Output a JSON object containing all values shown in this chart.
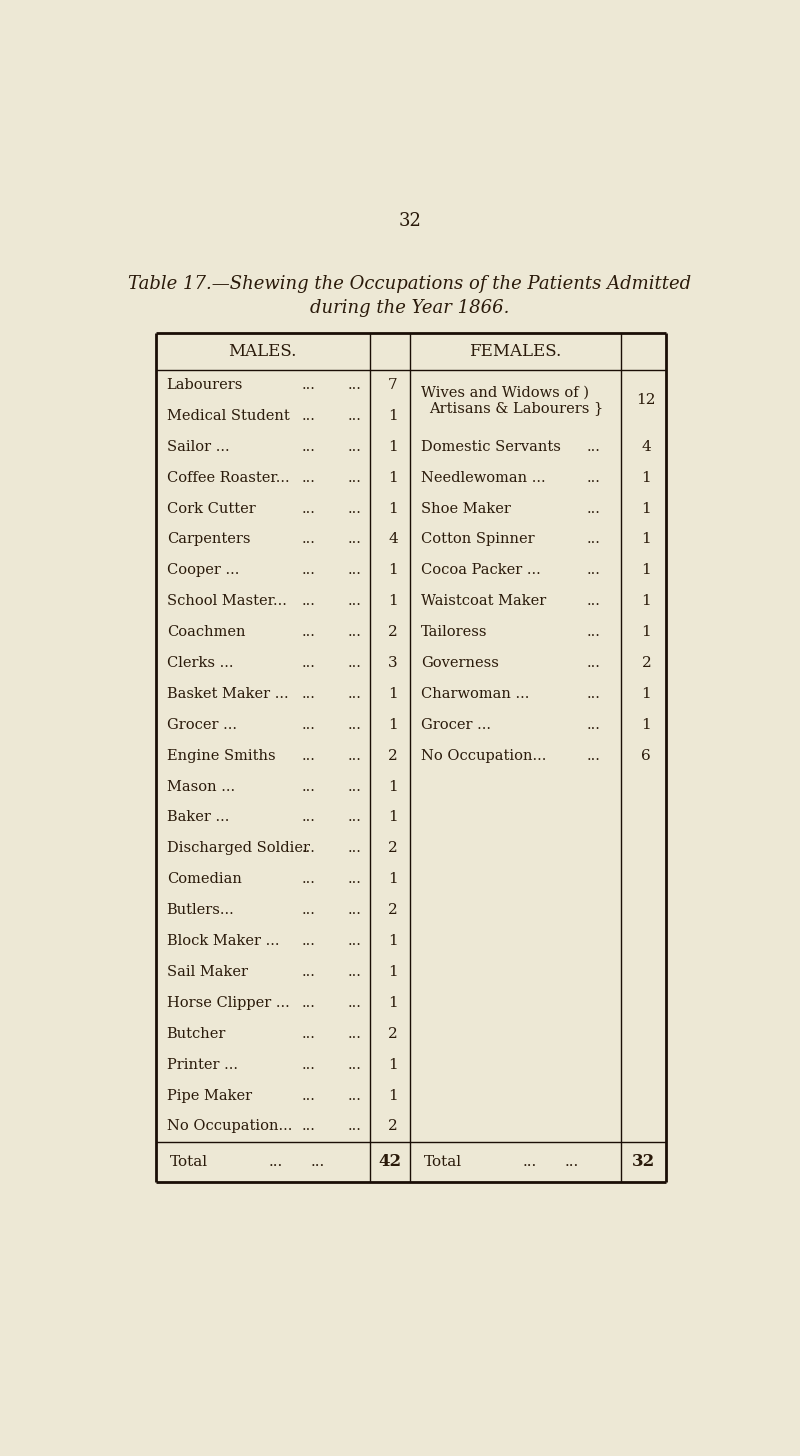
{
  "page_number": "32",
  "title_line1": "Table 17.—Shewing the Occupations of the Patients Admitted",
  "title_line2": "during the Year 1866.",
  "males_header": "MALES.",
  "females_header": "FEMALES.",
  "males_rows": [
    {
      "name": "Labourers",
      "dots1": "...",
      "dots2": "...",
      "val": "7"
    },
    {
      "name": "Medical Student",
      "dots1": "...",
      "dots2": "...",
      "val": "1"
    },
    {
      "name": "Sailor ...",
      "dots1": "...",
      "dots2": "...",
      "val": "1"
    },
    {
      "name": "Coffee Roaster...",
      "dots1": "...",
      "dots2": "...",
      "val": "1"
    },
    {
      "name": "Cork Cutter",
      "dots1": "...",
      "dots2": "...",
      "val": "1"
    },
    {
      "name": "Carpenters",
      "dots1": "...",
      "dots2": "...",
      "val": "4"
    },
    {
      "name": "Cooper ...",
      "dots1": "...",
      "dots2": "...",
      "val": "1"
    },
    {
      "name": "School Master...",
      "dots1": "...",
      "dots2": "...",
      "val": "1"
    },
    {
      "name": "Coachmen",
      "dots1": "...",
      "dots2": "...",
      "val": "2"
    },
    {
      "name": "Clerks ...",
      "dots1": "...",
      "dots2": "...",
      "val": "3"
    },
    {
      "name": "Basket Maker ...",
      "dots1": "...",
      "dots2": "...",
      "val": "1"
    },
    {
      "name": "Grocer ...",
      "dots1": "...",
      "dots2": "...",
      "val": "1"
    },
    {
      "name": "Engine Smiths",
      "dots1": "...",
      "dots2": "...",
      "val": "2"
    },
    {
      "name": "Mason ...",
      "dots1": "...",
      "dots2": "...",
      "val": "1"
    },
    {
      "name": "Baker ...",
      "dots1": "...",
      "dots2": "...",
      "val": "1"
    },
    {
      "name": "Discharged Soldier",
      "dots1": "...",
      "dots2": "...",
      "val": "2"
    },
    {
      "name": "Comedian",
      "dots1": "...",
      "dots2": "...",
      "val": "1"
    },
    {
      "name": "Butlers...",
      "dots1": "...",
      "dots2": "...",
      "val": "2"
    },
    {
      "name": "Block Maker ...",
      "dots1": "...",
      "dots2": "...",
      "val": "1"
    },
    {
      "name": "Sail Maker",
      "dots1": "...",
      "dots2": "...",
      "val": "1"
    },
    {
      "name": "Horse Clipper ...",
      "dots1": "...",
      "dots2": "...",
      "val": "1"
    },
    {
      "name": "Butcher",
      "dots1": "...",
      "dots2": "...",
      "val": "2"
    },
    {
      "name": "Printer ...",
      "dots1": "...",
      "dots2": "...",
      "val": "1"
    },
    {
      "name": "Pipe Maker",
      "dots1": "...",
      "dots2": "...",
      "val": "1"
    },
    {
      "name": "No Occupation...",
      "dots1": "...",
      "dots2": "...",
      "val": "2"
    }
  ],
  "males_total": "42",
  "females_rows": [
    {
      "line1": "Wives and Widows of )",
      "line2": "  Artisans & Labourers }",
      "dots": "",
      "val": "12",
      "span": 2
    },
    {
      "name": "Domestic Servants",
      "dots": "...",
      "val": "4",
      "row": 2
    },
    {
      "name": "Needlewoman ...",
      "dots": "...",
      "val": "1",
      "row": 3
    },
    {
      "name": "Shoe Maker",
      "dots": "...",
      "val": "1",
      "row": 4
    },
    {
      "name": "Cotton Spinner",
      "dots": "...",
      "val": "1",
      "row": 5
    },
    {
      "name": "Cocoa Packer ...",
      "dots": "...",
      "val": "1",
      "row": 6
    },
    {
      "name": "Waistcoat Maker",
      "dots": "...",
      "val": "1",
      "row": 7
    },
    {
      "name": "Tailoress",
      "dots": "...",
      "val": "1",
      "row": 8
    },
    {
      "name": "Governess",
      "dots": "...",
      "val": "2",
      "row": 9
    },
    {
      "name": "Charwoman ...",
      "dots": "...",
      "val": "1",
      "row": 10
    },
    {
      "name": "Grocer ...",
      "dots": "...",
      "val": "1",
      "row": 11
    },
    {
      "name": "No Occupation...",
      "dots": "...",
      "val": "6",
      "row": 12
    }
  ],
  "females_total": "32",
  "bg_color": "#ede8d5",
  "text_color": "#2a1a0a",
  "border_color": "#1a0e06"
}
